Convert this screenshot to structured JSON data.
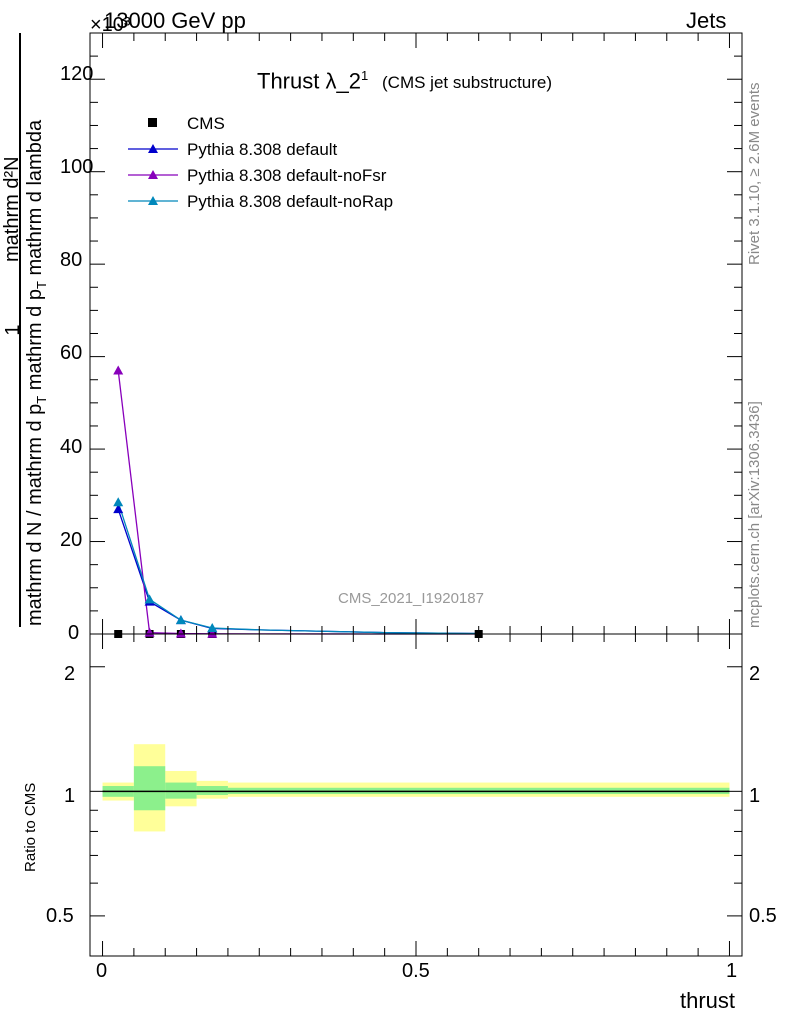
{
  "header": {
    "energy_label": "13000 GeV pp",
    "multiplier": "×10³",
    "process_label": "Jets"
  },
  "side_labels": {
    "rivet": "Rivet 3.1.10, ≥ 2.6M events",
    "mcplots": "mcplots.cern.ch [arXiv:1306.3436]"
  },
  "colors": {
    "cms": "#000000",
    "default": "#0000cc",
    "noFsr": "#8800bb",
    "noRap": "#0088bb",
    "band_inner": "#8cf08c",
    "band_outer": "#ffff99"
  },
  "chart_data": [
    {
      "type": "line",
      "title": "Thrust λ_2",
      "title_superscript": "1",
      "subtitle": "(CMS jet substructure)",
      "watermark": "CMS_2021_I1920187",
      "ylabel": {
        "numerator_one": "1",
        "numerator_main": "mathrm d²N",
        "denominator_left": "mathrm d N / mathrm d p",
        "denominator_right": "mathrm d p",
        "sub_T": "T",
        "tail": " mathrm d lambda"
      },
      "xlim": [
        -0.02,
        1.02
      ],
      "ylim": [
        0,
        130
      ],
      "y_major_ticks": [
        0,
        20,
        40,
        60,
        80,
        100,
        120
      ],
      "y_tick_labels": [
        "0",
        "20",
        "40",
        "60",
        "80",
        "100",
        "120"
      ],
      "legend_position": "top-left",
      "series": [
        {
          "name": "CMS",
          "marker": "square",
          "x": [
            0.025,
            0.075,
            0.125,
            0.175,
            0.6
          ],
          "y": [
            0.0,
            0.0,
            0.0,
            0.0,
            0.0
          ]
        },
        {
          "name": "Pythia 8.308 default",
          "marker": "triangle",
          "x": [
            0.025,
            0.075,
            0.125,
            0.175,
            0.25,
            0.35,
            0.45,
            0.6
          ],
          "y": [
            27,
            7,
            3,
            1.2,
            0.9,
            0.6,
            0.3,
            0.1
          ]
        },
        {
          "name": "Pythia 8.308 default-noFsr",
          "marker": "triangle",
          "x": [
            0.025,
            0.075,
            0.125,
            0.175,
            0.25,
            0.35,
            0.45,
            0.6
          ],
          "y": [
            57,
            0.3,
            0.1,
            0.05,
            0.02,
            0.01,
            0.0,
            0.0
          ]
        },
        {
          "name": "Pythia 8.308 default-noRap",
          "marker": "triangle",
          "x": [
            0.025,
            0.075,
            0.125,
            0.175,
            0.25,
            0.35,
            0.45,
            0.6
          ],
          "y": [
            28.5,
            7.5,
            3,
            1.3,
            0.9,
            0.6,
            0.3,
            0.1
          ]
        }
      ]
    },
    {
      "type": "area",
      "ylabel": "Ratio to CMS",
      "xlabel": "thrust",
      "xlim": [
        -0.02,
        1.02
      ],
      "ylim": [
        0.4,
        2.4
      ],
      "log_y": true,
      "y_tick_labels": [
        "0.5",
        "1",
        "2"
      ],
      "y_major_ticks": [
        0.5,
        1,
        2
      ],
      "x_tick_labels": [
        "0",
        "0.5",
        "1"
      ],
      "x_major_ticks": [
        0,
        0.5,
        1
      ],
      "reference_line": 1,
      "bands": [
        {
          "x0": 0.0,
          "x1": 0.05,
          "inner": [
            0.97,
            1.03
          ],
          "outer": [
            0.95,
            1.05
          ]
        },
        {
          "x0": 0.05,
          "x1": 0.1,
          "inner": [
            0.9,
            1.15
          ],
          "outer": [
            0.8,
            1.3
          ]
        },
        {
          "x0": 0.1,
          "x1": 0.15,
          "inner": [
            0.96,
            1.05
          ],
          "outer": [
            0.92,
            1.12
          ]
        },
        {
          "x0": 0.15,
          "x1": 0.2,
          "inner": [
            0.98,
            1.03
          ],
          "outer": [
            0.96,
            1.06
          ]
        },
        {
          "x0": 0.2,
          "x1": 1.0,
          "inner": [
            0.985,
            1.02
          ],
          "outer": [
            0.97,
            1.05
          ]
        }
      ]
    }
  ]
}
